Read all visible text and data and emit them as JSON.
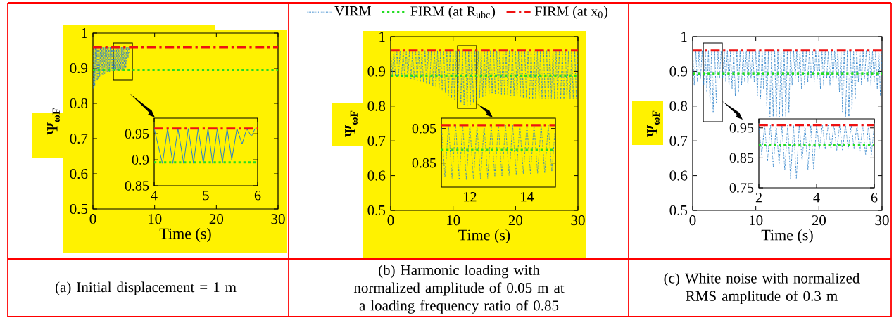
{
  "chart_data": [
    {
      "type": "line",
      "xlabel": "Time (s)",
      "ylabel": "Ψ$_{ωF}$",
      "xlim": [
        0,
        30
      ],
      "ylim": [
        0.5,
        1
      ],
      "xticks": [
        0,
        10,
        20,
        30
      ],
      "yticks": [
        0.5,
        0.6,
        0.7,
        0.8,
        0.9,
        1
      ],
      "marker": "none",
      "annotations": [
        "(a) Initial displacement = 1 m"
      ],
      "x": [
        0,
        0.1,
        0.2,
        0.3,
        0.4,
        0.5,
        0.6,
        0.7,
        0.8,
        0.9,
        1,
        1.1,
        1.2,
        1.3,
        1.4,
        1.5,
        1.6,
        1.7,
        1.8,
        1.9,
        2,
        2.1,
        2.2,
        2.3,
        2.4,
        2.5,
        2.6,
        2.7,
        2.8,
        2.9,
        3,
        3.1,
        3.2,
        3.3,
        3.4,
        3.5,
        3.6,
        3.7,
        3.8,
        3.9,
        4,
        4.1,
        4.2,
        4.3,
        4.4,
        4.5,
        4.6,
        4.7,
        4.8,
        4.9,
        5,
        5.1,
        5.2,
        5.3,
        5.4,
        5.5,
        5.6,
        5.7,
        5.8,
        5.9,
        6
      ],
      "series": [
        {
          "color": "#2a7fc9",
          "line_style": "dotted",
          "values": [
            0.96,
            0.84,
            0.96,
            0.85,
            0.96,
            0.86,
            0.96,
            0.865,
            0.96,
            0.87,
            0.96,
            0.875,
            0.96,
            0.878,
            0.96,
            0.88,
            0.96,
            0.882,
            0.96,
            0.884,
            0.96,
            0.886,
            0.96,
            0.888,
            0.96,
            0.889,
            0.96,
            0.89,
            0.96,
            0.891,
            0.96,
            0.892,
            0.96,
            0.892,
            0.96,
            0.893,
            0.96,
            0.893,
            0.96,
            0.893,
            0.96,
            0.893,
            0.96,
            0.893,
            0.96,
            0.893,
            0.96,
            0.893,
            0.96,
            0.893,
            0.96,
            0.895,
            0.96,
            0.9,
            0.96,
            0.9,
            0.96,
            0.93,
            0.96,
            0.945,
            0.96
          ]
        },
        {
          "color": "#22dd22",
          "line_style": "dotted",
          "x": [
            0,
            30
          ],
          "values": [
            0.895,
            0.895
          ]
        },
        {
          "color": "#ee1111",
          "line_style": "dashed",
          "x": [
            0,
            30
          ],
          "values": [
            0.96,
            0.96
          ]
        }
      ]
    },
    {
      "type": "line",
      "xlim": [
        4,
        6
      ],
      "ylim": [
        0.85,
        0.98
      ],
      "xticks": [
        4,
        5,
        6
      ],
      "yticks": [
        0.85,
        0.9,
        0.95
      ],
      "marker": "none",
      "x": [
        4,
        4.16,
        4.26,
        4.36,
        4.46,
        4.57,
        4.66,
        4.76,
        4.85,
        4.95,
        5.04,
        5.13,
        5.22,
        5.32,
        5.41,
        5.5,
        5.6,
        5.7,
        5.79,
        5.88,
        5.95
      ],
      "series": [
        {
          "color": "#2a7fc9",
          "line_style": "solid",
          "values": [
            0.96,
            0.893,
            0.96,
            0.893,
            0.96,
            0.893,
            0.96,
            0.893,
            0.96,
            0.893,
            0.96,
            0.893,
            0.96,
            0.895,
            0.96,
            0.9,
            0.96,
            0.93,
            0.96,
            0.945,
            0.96
          ]
        },
        {
          "color": "#22dd22",
          "line_style": "dotted",
          "x": [
            4,
            6
          ],
          "values": [
            0.895,
            0.895
          ]
        },
        {
          "color": "#ee1111",
          "line_style": "dashed",
          "x": [
            4,
            6
          ],
          "values": [
            0.96,
            0.96
          ]
        }
      ]
    },
    {
      "type": "line",
      "xlabel": "Time (s)",
      "ylabel": "Ψ$_{ωF}$",
      "xlim": [
        0,
        30
      ],
      "ylim": [
        0.5,
        1
      ],
      "xticks": [
        0,
        10,
        20,
        30
      ],
      "yticks": [
        0.5,
        0.6,
        0.7,
        0.8,
        0.9,
        1
      ],
      "marker": "none",
      "legend": "top",
      "annotations": [
        "(b) Harmonic loading with normalized amplitude of 0.05 m at a loading frequency ratio of 0.85"
      ],
      "x": [
        0,
        0.25,
        0.5,
        0.75,
        1,
        1.25,
        1.5,
        1.75,
        2,
        2.25,
        2.5,
        2.75,
        3,
        3.25,
        3.5,
        3.75,
        4,
        4.25,
        4.5,
        4.75,
        5,
        5.25,
        5.5,
        5.75,
        6,
        6.25,
        6.5,
        6.75,
        7,
        7.25,
        7.5,
        7.75,
        8,
        8.25,
        8.5,
        8.75,
        9,
        9.25,
        9.5,
        9.75,
        10,
        10.25,
        10.5,
        10.75,
        11,
        11.25,
        11.5,
        11.75,
        12,
        12.25,
        12.5,
        12.75,
        13,
        13.25,
        13.5,
        13.75,
        14,
        14.25,
        14.5,
        14.75,
        15,
        15.25,
        15.5,
        15.75,
        16,
        16.25,
        16.5,
        16.75,
        17,
        17.25,
        17.5,
        17.75,
        18,
        18.25,
        18.5,
        18.75,
        19,
        19.25,
        19.5,
        19.75,
        20,
        20.25,
        20.5,
        20.75,
        21,
        21.25,
        21.5,
        21.75,
        22,
        22.25,
        22.5,
        22.75,
        23,
        23.25,
        23.5,
        23.75,
        24,
        24.25,
        24.5,
        24.75,
        25,
        25.25,
        25.5,
        25.75,
        26,
        26.25,
        26.5,
        26.75,
        27,
        27.25,
        27.5,
        27.75,
        28,
        28.25,
        28.5,
        28.75,
        29,
        29.25,
        29.5,
        29.75,
        30
      ],
      "series": [
        {
          "name": "VIRM",
          "color": "#2a7fc9",
          "line_style": "dotted",
          "values": [
            0.96,
            0.889,
            0.96,
            0.887,
            0.96,
            0.885,
            0.96,
            0.883,
            0.96,
            0.881,
            0.96,
            0.879,
            0.96,
            0.877,
            0.96,
            0.875,
            0.96,
            0.873,
            0.96,
            0.871,
            0.96,
            0.868,
            0.96,
            0.865,
            0.96,
            0.862,
            0.96,
            0.858,
            0.96,
            0.855,
            0.96,
            0.852,
            0.96,
            0.846,
            0.96,
            0.839,
            0.96,
            0.831,
            0.96,
            0.824,
            0.96,
            0.818,
            0.96,
            0.813,
            0.96,
            0.808,
            0.96,
            0.803,
            0.96,
            0.801,
            0.96,
            0.804,
            0.96,
            0.809,
            0.96,
            0.816,
            0.96,
            0.822,
            0.96,
            0.826,
            0.96,
            0.83,
            0.96,
            0.834,
            0.96,
            0.835,
            0.96,
            0.834,
            0.96,
            0.834,
            0.96,
            0.833,
            0.96,
            0.833,
            0.96,
            0.832,
            0.96,
            0.831,
            0.96,
            0.83,
            0.96,
            0.829,
            0.96,
            0.827,
            0.96,
            0.824,
            0.96,
            0.821,
            0.96,
            0.82,
            0.96,
            0.82,
            0.96,
            0.82,
            0.96,
            0.82,
            0.96,
            0.82,
            0.96,
            0.82,
            0.96,
            0.82,
            0.96,
            0.82,
            0.96,
            0.82,
            0.96,
            0.82,
            0.96,
            0.82,
            0.96,
            0.82,
            0.96,
            0.82,
            0.96,
            0.82,
            0.96,
            0.82,
            0.96,
            0.82,
            0.96
          ]
        },
        {
          "name": "FIRM (at R$_{ubc}$)",
          "color": "#22dd22",
          "line_style": "dotted",
          "x": [
            0,
            30
          ],
          "values": [
            0.888,
            0.888
          ]
        },
        {
          "name": "FIRM (at x$_{0}$)",
          "color": "#ee1111",
          "line_style": "dashed",
          "x": [
            0,
            30
          ],
          "values": [
            0.96,
            0.96
          ]
        }
      ]
    },
    {
      "type": "line",
      "xlim": [
        11,
        15
      ],
      "ylim": [
        0.78,
        0.98
      ],
      "xticks": [
        12,
        14
      ],
      "yticks": [
        0.85,
        0.95
      ],
      "marker": "none",
      "x": [
        11,
        11.125,
        11.25,
        11.375,
        11.5,
        11.625,
        11.75,
        11.875,
        12,
        12.125,
        12.25,
        12.375,
        12.5,
        12.625,
        12.75,
        12.875,
        13,
        13.125,
        13.25,
        13.375,
        13.5,
        13.625,
        13.75,
        13.875,
        14,
        14.125,
        14.25,
        14.375,
        14.5,
        14.625,
        14.75,
        14.875,
        15
      ],
      "series": [
        {
          "color": "#2a7fc9",
          "line_style": "dotted",
          "values": [
            0.96,
            0.81,
            0.96,
            0.806,
            0.96,
            0.803,
            0.96,
            0.802,
            0.96,
            0.802,
            0.96,
            0.803,
            0.96,
            0.806,
            0.96,
            0.81,
            0.96,
            0.812,
            0.96,
            0.814,
            0.96,
            0.816,
            0.96,
            0.818,
            0.96,
            0.819,
            0.96,
            0.82,
            0.96,
            0.822,
            0.96,
            0.824,
            0.96
          ]
        },
        {
          "color": "#22dd22",
          "line_style": "dotted",
          "x": [
            11,
            15
          ],
          "values": [
            0.888,
            0.888
          ]
        },
        {
          "color": "#ee1111",
          "line_style": "dashed",
          "x": [
            11,
            15
          ],
          "values": [
            0.96,
            0.96
          ]
        }
      ]
    },
    {
      "type": "line",
      "xlabel": "Time (s)",
      "ylabel": "Ψ$_{ωF}$",
      "xlim": [
        0,
        30
      ],
      "ylim": [
        0.5,
        1
      ],
      "xticks": [
        0,
        10,
        20,
        30
      ],
      "yticks": [
        0.5,
        0.6,
        0.7,
        0.8,
        0.9,
        1
      ],
      "marker": "none",
      "annotations": [
        "(c) White noise with normalized RMS amplitude of 0.3 m"
      ],
      "x": [
        0,
        0.25,
        0.5,
        0.75,
        1,
        1.25,
        1.5,
        1.75,
        2,
        2.25,
        2.5,
        2.75,
        3,
        3.25,
        3.5,
        3.75,
        4,
        4.25,
        4.5,
        4.75,
        5,
        5.25,
        5.5,
        5.75,
        6,
        6.25,
        6.5,
        6.75,
        7,
        7.25,
        7.5,
        7.75,
        8,
        8.25,
        8.5,
        8.75,
        9,
        9.25,
        9.5,
        9.75,
        10,
        10.25,
        10.5,
        10.75,
        11,
        11.25,
        11.5,
        11.75,
        12,
        12.25,
        12.5,
        12.75,
        13,
        13.25,
        13.5,
        13.75,
        14,
        14.25,
        14.5,
        14.75,
        15,
        15.25,
        15.5,
        15.75,
        16,
        16.25,
        16.5,
        16.75,
        17,
        17.25,
        17.5,
        17.75,
        18,
        18.25,
        18.5,
        18.75,
        19,
        19.25,
        19.5,
        19.75,
        20,
        20.25,
        20.5,
        20.75,
        21,
        21.25,
        21.5,
        21.75,
        22,
        22.25,
        22.5,
        22.75,
        23,
        23.25,
        23.5,
        23.75,
        24,
        24.25,
        24.5,
        24.75,
        25,
        25.25,
        25.5,
        25.75,
        26,
        26.25,
        26.5,
        26.75,
        27,
        27.25,
        27.5,
        27.75,
        28,
        28.25,
        28.5,
        28.75,
        29,
        29.25,
        29.5,
        29.75,
        30
      ],
      "series": [
        {
          "color": "#2a7fc9",
          "line_style": "dotted",
          "values": [
            0.96,
            0.86,
            0.96,
            0.87,
            0.96,
            0.88,
            0.96,
            0.86,
            0.96,
            0.84,
            0.96,
            0.81,
            0.96,
            0.78,
            0.96,
            0.81,
            0.96,
            0.88,
            0.96,
            0.88,
            0.96,
            0.87,
            0.96,
            0.86,
            0.96,
            0.85,
            0.96,
            0.83,
            0.96,
            0.84,
            0.96,
            0.86,
            0.96,
            0.87,
            0.96,
            0.86,
            0.96,
            0.88,
            0.96,
            0.87,
            0.96,
            0.83,
            0.96,
            0.82,
            0.96,
            0.85,
            0.96,
            0.8,
            0.96,
            0.77,
            0.96,
            0.77,
            0.96,
            0.77,
            0.96,
            0.77,
            0.96,
            0.77,
            0.96,
            0.77,
            0.96,
            0.78,
            0.96,
            0.86,
            0.96,
            0.88,
            0.96,
            0.87,
            0.96,
            0.85,
            0.96,
            0.86,
            0.96,
            0.87,
            0.96,
            0.88,
            0.96,
            0.87,
            0.96,
            0.88,
            0.96,
            0.85,
            0.96,
            0.86,
            0.96,
            0.88,
            0.96,
            0.86,
            0.96,
            0.87,
            0.96,
            0.88,
            0.96,
            0.84,
            0.96,
            0.78,
            0.96,
            0.77,
            0.96,
            0.77,
            0.96,
            0.79,
            0.96,
            0.82,
            0.96,
            0.87,
            0.96,
            0.86,
            0.96,
            0.88,
            0.96,
            0.87,
            0.96,
            0.86,
            0.96,
            0.87,
            0.96,
            0.85,
            0.96,
            0.83,
            0.96
          ]
        },
        {
          "color": "#22dd22",
          "line_style": "dotted",
          "x": [
            0,
            30
          ],
          "values": [
            0.893,
            0.893
          ]
        },
        {
          "color": "#ee1111",
          "line_style": "dashed",
          "x": [
            0,
            30
          ],
          "values": [
            0.96,
            0.96
          ]
        }
      ]
    },
    {
      "type": "line",
      "xlim": [
        2,
        6
      ],
      "ylim": [
        0.75,
        0.98
      ],
      "xticks": [
        2,
        4,
        6
      ],
      "yticks": [
        0.75,
        0.85,
        0.95
      ],
      "marker": "none",
      "x": [
        2,
        2.1,
        2.2,
        2.3,
        2.4,
        2.5,
        2.6,
        2.7,
        2.8,
        2.9,
        3,
        3.1,
        3.2,
        3.3,
        3.4,
        3.5,
        3.6,
        3.7,
        3.8,
        3.9,
        4,
        4.1,
        4.2,
        4.3,
        4.4,
        4.5,
        4.6,
        4.7,
        4.8,
        4.9,
        5,
        5.1,
        5.2,
        5.3,
        5.4,
        5.5,
        5.6,
        5.7,
        5.8,
        5.9,
        6
      ],
      "series": [
        {
          "color": "#2a7fc9",
          "line_style": "dotted",
          "values": [
            0.96,
            0.86,
            0.96,
            0.84,
            0.96,
            0.82,
            0.96,
            0.83,
            0.96,
            0.81,
            0.96,
            0.78,
            0.96,
            0.78,
            0.96,
            0.84,
            0.96,
            0.81,
            0.96,
            0.81,
            0.96,
            0.88,
            0.96,
            0.88,
            0.96,
            0.88,
            0.96,
            0.875,
            0.96,
            0.875,
            0.96,
            0.88,
            0.96,
            0.88,
            0.96,
            0.87,
            0.96,
            0.86,
            0.96,
            0.86,
            0.96
          ]
        },
        {
          "color": "#22dd22",
          "line_style": "dotted",
          "x": [
            2,
            6
          ],
          "values": [
            0.893,
            0.893
          ]
        },
        {
          "color": "#ee1111",
          "line_style": "dashed",
          "x": [
            2,
            6
          ],
          "values": [
            0.96,
            0.96
          ]
        }
      ]
    }
  ]
}
